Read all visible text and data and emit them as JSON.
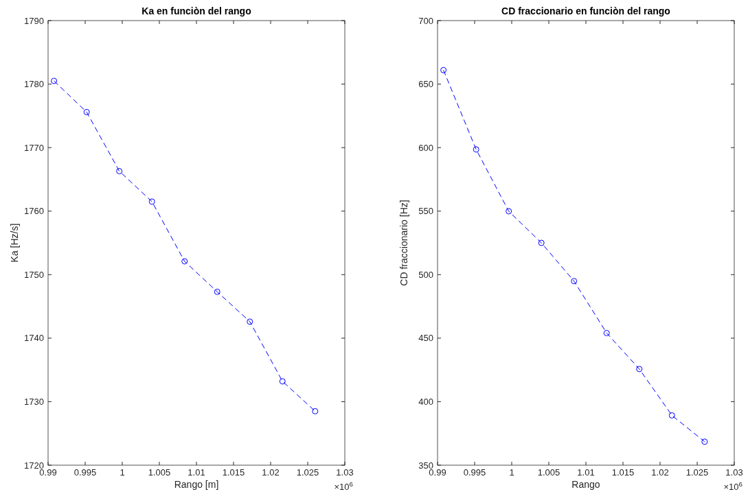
{
  "chart_data": [
    {
      "type": "line",
      "title": "Ka en funciòn del rango",
      "xlabel": "Rango [m]",
      "ylabel": "Ka [Hz/s]",
      "x": [
        0.9908,
        0.9952,
        0.9996,
        1.004,
        1.0084,
        1.0128,
        1.0172,
        1.0216,
        1.026
      ],
      "series": [
        {
          "color": "#0000ff",
          "values": [
            1780.5,
            1775.6,
            1766.3,
            1761.5,
            1752.1,
            1747.3,
            1742.6,
            1733.2,
            1728.5
          ]
        }
      ],
      "xlim": [
        0.99,
        1.03
      ],
      "xticks": [
        0.99,
        0.995,
        1,
        1.005,
        1.01,
        1.015,
        1.02,
        1.025,
        1.03
      ],
      "ylim": [
        1720,
        1790
      ],
      "yticks": [
        1720,
        1730,
        1740,
        1750,
        1760,
        1770,
        1780,
        1790
      ],
      "marker": "circle",
      "line_style": "dashed",
      "annotations": [
        "×10$^{6}$"
      ]
    },
    {
      "type": "line",
      "title": "CD fraccionario en funciòn del rango",
      "xlabel": "Rango",
      "ylabel": "CD fraccionario [Hz]",
      "x": [
        0.9908,
        0.9952,
        0.9996,
        1.004,
        1.0084,
        1.0128,
        1.0172,
        1.0216,
        1.026
      ],
      "series": [
        {
          "color": "#0000ff",
          "values": [
            661,
            598.6,
            549.9,
            525,
            494.9,
            454,
            425.7,
            389.2,
            368.5
          ]
        }
      ],
      "xlim": [
        0.99,
        1.03
      ],
      "xticks": [
        0.99,
        0.995,
        1,
        1.005,
        1.01,
        1.015,
        1.02,
        1.025,
        1.03
      ],
      "ylim": [
        350,
        700
      ],
      "yticks": [
        350,
        400,
        450,
        500,
        550,
        600,
        650,
        700
      ],
      "marker": "circle",
      "line_style": "dashed",
      "annotations": [
        "×10$^{6}$"
      ]
    }
  ]
}
